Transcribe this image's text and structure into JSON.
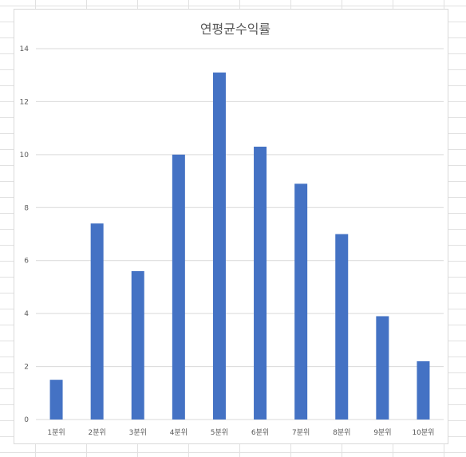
{
  "chart_data": {
    "type": "bar",
    "title": "연평균수익률",
    "xlabel": "",
    "ylabel": "",
    "categories": [
      "1분위",
      "2분위",
      "3분위",
      "4분위",
      "5분위",
      "6분위",
      "7분위",
      "8분위",
      "9분위",
      "10분위"
    ],
    "values": [
      1.5,
      7.4,
      5.6,
      10.0,
      13.1,
      10.3,
      8.9,
      7.0,
      3.9,
      2.2
    ],
    "ylim": [
      0,
      14
    ],
    "yticks": [
      0,
      2,
      4,
      6,
      8,
      10,
      12,
      14
    ],
    "grid": true,
    "legend": "none",
    "bar_color": "#4472C4",
    "grid_color": "#d9d9d9"
  }
}
